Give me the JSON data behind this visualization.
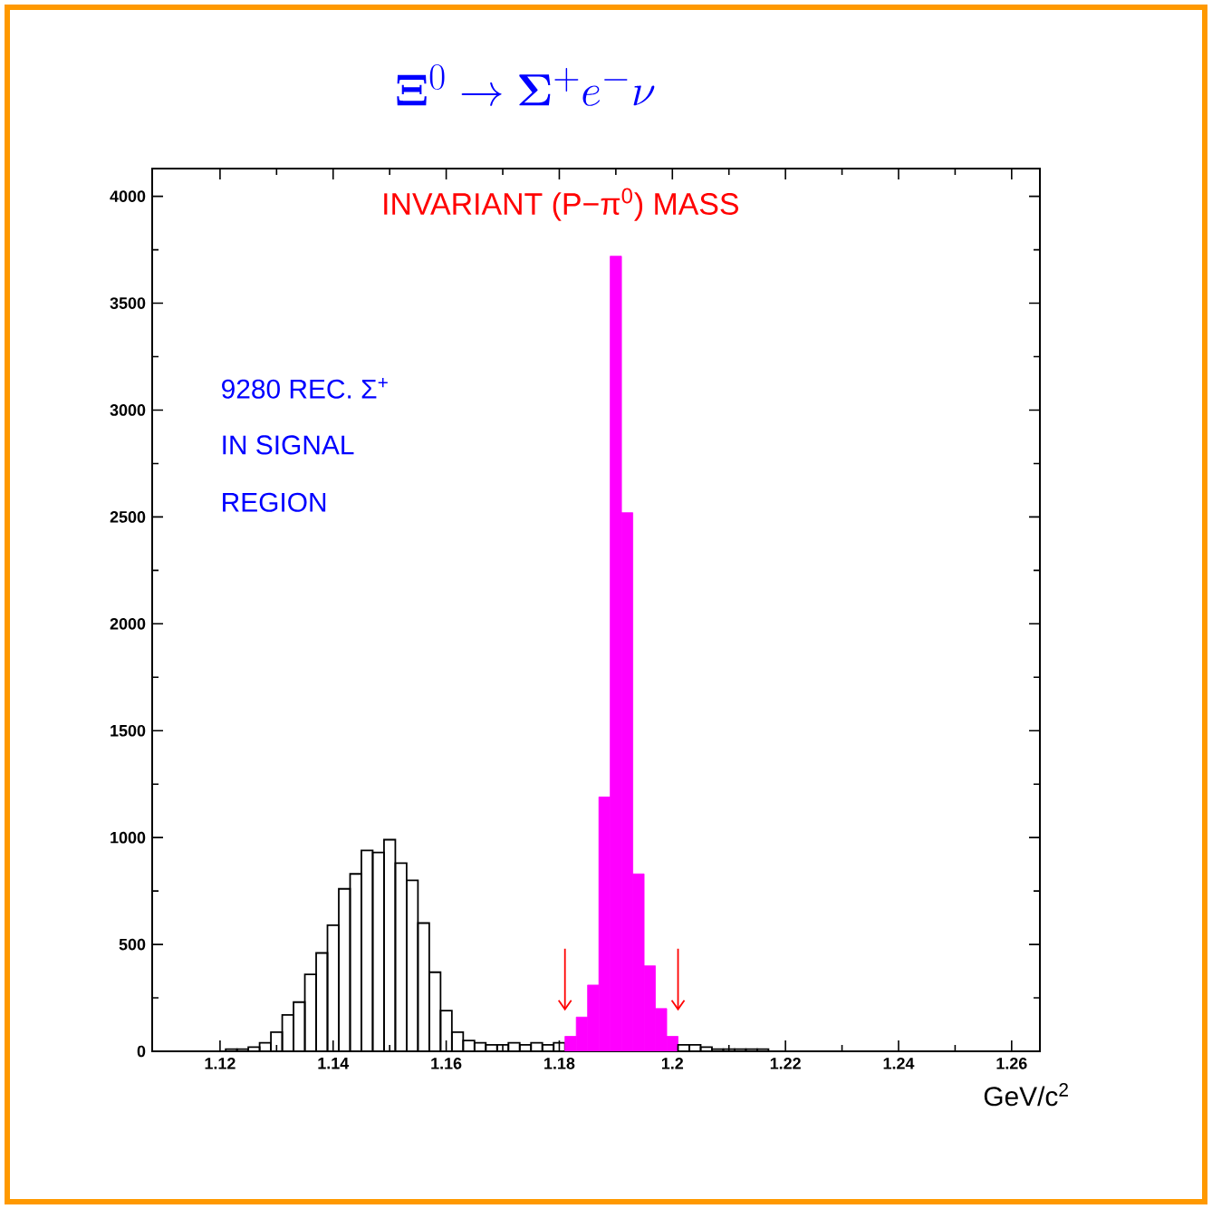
{
  "chart_data": {
    "type": "histogram",
    "title": "\\mathbf{\\Xi}^0 \\rightarrow \\mathbf{\\Sigma}^+ e^- \\nu",
    "xlabel": "GeV/c$^{2}$",
    "annotations": [
      "INVARIANT (P−π$^{0}$) MASS",
      "9280 REC. Σ$^{+}$",
      "IN SIGNAL",
      "REGION"
    ],
    "xlim": [
      1.108,
      1.265
    ],
    "ylim": [
      0,
      4130
    ],
    "xticks": [
      1.12,
      1.14,
      1.16,
      1.18,
      {
        "value": 1.2,
        "label": "1.2"
      },
      1.22,
      1.24,
      1.26
    ],
    "yticks": [
      0,
      500,
      1000,
      1500,
      2000,
      2500,
      3000,
      3500,
      4000
    ],
    "color": "#000000",
    "bins": [
      1.121,
      1.123,
      1.125,
      1.127,
      1.129,
      1.131,
      1.133,
      1.135,
      1.137,
      1.139,
      1.141,
      1.143,
      1.145,
      1.147,
      1.149,
      1.151,
      1.153,
      1.155,
      1.157,
      1.159,
      1.161,
      1.163,
      1.165,
      1.167,
      1.169,
      1.171,
      1.173,
      1.175,
      1.177,
      1.179,
      1.181,
      1.183,
      1.185,
      1.187,
      1.189,
      1.191,
      1.193,
      1.195,
      1.197,
      1.199,
      1.201,
      1.203,
      1.205,
      1.207,
      1.209,
      1.211,
      1.213,
      1.215,
      1.217
    ],
    "values": [
      10,
      10,
      20,
      40,
      90,
      170,
      230,
      360,
      460,
      590,
      760,
      830,
      940,
      930,
      990,
      880,
      800,
      600,
      370,
      190,
      90,
      50,
      40,
      30,
      30,
      40,
      30,
      40,
      30,
      40,
      70,
      160,
      310,
      1190,
      3720,
      2520,
      830,
      400,
      200,
      70,
      30,
      30,
      20,
      10,
      10,
      10,
      10,
      10
    ],
    "colors": [
      "#000000",
      "#000000",
      "#000000",
      "#000000",
      "#000000",
      "#000000",
      "#000000",
      "#000000",
      "#000000",
      "#000000",
      "#000000",
      "#000000",
      "#000000",
      "#000000",
      "#000000",
      "#000000",
      "#000000",
      "#000000",
      "#000000",
      "#000000",
      "#000000",
      "#000000",
      "#000000",
      "#000000",
      "#000000",
      "#000000",
      "#000000",
      "#000000",
      "#000000",
      "#000000",
      "#ff00ff",
      "#ff00ff",
      "#ff00ff",
      "#ff00ff",
      "#ff00ff",
      "#ff00ff",
      "#ff00ff",
      "#ff00ff",
      "#ff00ff",
      "#ff00ff",
      "#000000",
      "#000000",
      "#000000",
      "#000000",
      "#000000",
      "#000000",
      "#000000",
      "#000000"
    ]
  }
}
